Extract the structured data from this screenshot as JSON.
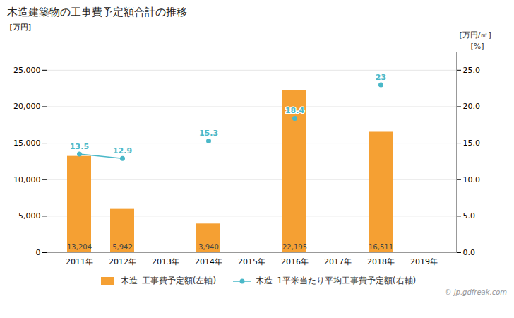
{
  "chart_data": {
    "type": "bar",
    "title": "木造建築物の工事費予定額合計の推移",
    "categories": [
      "2011年",
      "2012年",
      "2013年",
      "2014年",
      "2015年",
      "2016年",
      "2017年",
      "2018年",
      "2019年"
    ],
    "series": [
      {
        "name": "木造_工事費予定額(左軸)",
        "type": "bar",
        "color": "#f5a033",
        "values": [
          13204,
          5942,
          null,
          3940,
          null,
          22195,
          null,
          16511,
          null
        ],
        "value_labels": [
          "13,204",
          "5,942",
          null,
          "3,940",
          null,
          "22,195",
          null,
          "16,511",
          null
        ]
      },
      {
        "name": "木造_1平米当たり平均工事費予定額(右軸)",
        "type": "line",
        "axis": "y2",
        "color": "#4ab8c8",
        "marker": "circle",
        "values": [
          13.5,
          12.9,
          null,
          15.3,
          null,
          18.4,
          null,
          23.0,
          null
        ]
      }
    ],
    "ylabel": "[万円]",
    "y2label": "[万円/㎡]",
    "annotations": [
      "[%]",
      "© jp.gdfreak.com"
    ],
    "ylim": [
      0,
      27500
    ],
    "yticks": [
      0,
      {
        "value": 5000,
        "label": "5,000"
      },
      {
        "value": 10000,
        "label": "10,000"
      },
      {
        "value": 15000,
        "label": "15,000"
      },
      {
        "value": 20000,
        "label": "20,000"
      },
      {
        "value": 25000,
        "label": "25,000"
      }
    ],
    "y2lim": [
      0,
      27.5
    ],
    "y2ticks": [
      {
        "value": 0,
        "label": "0.0"
      },
      {
        "value": 5,
        "label": "5.0"
      },
      {
        "value": 10,
        "label": "10.0"
      },
      {
        "value": 15,
        "label": "15.0"
      },
      {
        "value": 20,
        "label": "20.0"
      },
      {
        "value": 25,
        "label": "25.0"
      }
    ],
    "grid": true,
    "legend": "bottom",
    "data_labels": true
  }
}
